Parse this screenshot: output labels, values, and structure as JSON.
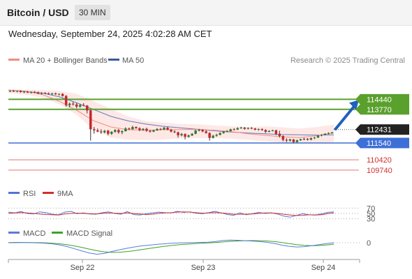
{
  "header": {
    "title": "Bitcoin / USD",
    "timeframe": "30 MIN"
  },
  "datetime": "Wednesday, September 24, 2025 4:02:28 AM CET",
  "legend": {
    "ma20": "MA 20 + Bollinger Bands",
    "ma50": "MA 50",
    "credit": "Research © 2025 Trading Central",
    "rsi": "RSI",
    "rsi_ma": "9MA",
    "macd": "MACD",
    "macd_signal": "MACD Signal"
  },
  "colors": {
    "up": "#2e7d32",
    "down": "#c62828",
    "ma20": "#f28b82",
    "ma50": "#5b7bbf",
    "bollinger": "#fde0de",
    "resistance": "#5aa02c",
    "pivot": "#3d6fd6",
    "support": "#e57373",
    "arrow": "#1f5fbf",
    "rsi": "#4f73d9",
    "rsi_ma": "#d32f2f",
    "macd": "#5b7bd6",
    "macd_signal": "#3aa329"
  },
  "chart_data": {
    "type": "candlestick",
    "x_ticks": [
      "Sep 22",
      "Sep 23",
      "Sep 24"
    ],
    "price_range": [
      108900,
      116400
    ],
    "price": {
      "ohlc_30min": [
        [
          114970,
          115025,
          114920,
          114990
        ],
        [
          114990,
          115055,
          114930,
          114960
        ],
        [
          114960,
          115010,
          114900,
          115000
        ],
        [
          115000,
          115040,
          114880,
          114920
        ],
        [
          114920,
          114985,
          114850,
          114950
        ],
        [
          114950,
          114990,
          114860,
          114880
        ],
        [
          114880,
          114960,
          114820,
          114930
        ],
        [
          114930,
          114980,
          114860,
          114900
        ],
        [
          114900,
          114950,
          114780,
          114820
        ],
        [
          114820,
          114900,
          114750,
          114860
        ],
        [
          114860,
          114910,
          114790,
          114840
        ],
        [
          114840,
          114890,
          114760,
          114800
        ],
        [
          114800,
          114860,
          114720,
          114830
        ],
        [
          114830,
          114880,
          114740,
          114770
        ],
        [
          114770,
          114820,
          114690,
          114800
        ],
        [
          114800,
          114840,
          114620,
          114660
        ],
        [
          114660,
          114720,
          113950,
          114050
        ],
        [
          114050,
          114220,
          113900,
          114150
        ],
        [
          114150,
          114260,
          114020,
          114100
        ],
        [
          114100,
          114200,
          113850,
          113950
        ],
        [
          113950,
          114120,
          113880,
          114050
        ],
        [
          114050,
          114180,
          113980,
          114020
        ],
        [
          114020,
          114060,
          113500,
          113700
        ],
        [
          113700,
          113760,
          111700,
          112450
        ],
        [
          112450,
          112600,
          112150,
          112380
        ],
        [
          112380,
          112500,
          112250,
          112300
        ],
        [
          112300,
          112450,
          112150,
          112250
        ],
        [
          112250,
          112400,
          112180,
          112350
        ],
        [
          112350,
          112420,
          112050,
          112150
        ],
        [
          112150,
          112320,
          112080,
          112280
        ],
        [
          112280,
          112450,
          112220,
          112400
        ],
        [
          112400,
          112470,
          112150,
          112250
        ],
        [
          112250,
          112380,
          112120,
          112320
        ],
        [
          112320,
          112580,
          112300,
          112500
        ],
        [
          112500,
          112560,
          112400,
          112450
        ],
        [
          112450,
          112680,
          112420,
          112600
        ],
        [
          112600,
          112640,
          112480,
          112520
        ],
        [
          112520,
          112580,
          112320,
          112400
        ],
        [
          112400,
          112520,
          112350,
          112480
        ],
        [
          112480,
          112560,
          112280,
          112350
        ],
        [
          112350,
          112400,
          112230,
          112290
        ],
        [
          112290,
          112420,
          112260,
          112380
        ],
        [
          112380,
          112520,
          112340,
          112470
        ],
        [
          112470,
          112530,
          112380,
          112430
        ],
        [
          112430,
          112600,
          112400,
          112550
        ],
        [
          112550,
          112610,
          112380,
          112420
        ],
        [
          112420,
          112480,
          112240,
          112300
        ],
        [
          112300,
          112380,
          112190,
          112250
        ],
        [
          112250,
          112290,
          111900,
          112050
        ],
        [
          112050,
          112200,
          111980,
          112130
        ],
        [
          112130,
          112180,
          111780,
          111950
        ],
        [
          111950,
          112100,
          111900,
          112040
        ],
        [
          112040,
          112200,
          112000,
          112150
        ],
        [
          112150,
          112420,
          112120,
          112360
        ],
        [
          112360,
          112480,
          112300,
          112420
        ],
        [
          112420,
          112450,
          112250,
          112310
        ],
        [
          112310,
          112390,
          112160,
          112200
        ],
        [
          112200,
          112260,
          111700,
          111880
        ],
        [
          111880,
          112080,
          111840,
          112020
        ],
        [
          112020,
          112150,
          111960,
          112080
        ],
        [
          112080,
          112250,
          112050,
          112200
        ],
        [
          112200,
          112330,
          112150,
          112300
        ],
        [
          112300,
          112390,
          112250,
          112330
        ],
        [
          112330,
          112480,
          112300,
          112450
        ],
        [
          112450,
          112520,
          112380,
          112430
        ],
        [
          112430,
          112580,
          112400,
          112520
        ],
        [
          112520,
          112620,
          112480,
          112560
        ],
        [
          112560,
          112600,
          112420,
          112480
        ],
        [
          112480,
          112580,
          112440,
          112530
        ],
        [
          112530,
          112600,
          112460,
          112500
        ],
        [
          112500,
          112540,
          112380,
          112420
        ],
        [
          112420,
          112500,
          112360,
          112460
        ],
        [
          112460,
          112510,
          112350,
          112400
        ],
        [
          112400,
          112450,
          112200,
          112280
        ],
        [
          112280,
          112380,
          112250,
          112340
        ],
        [
          112340,
          112420,
          112310,
          112380
        ],
        [
          112380,
          112420,
          112060,
          112150
        ],
        [
          112150,
          112350,
          111900,
          112000
        ],
        [
          112000,
          112050,
          111650,
          111750
        ],
        [
          111750,
          111850,
          111600,
          111700
        ],
        [
          111700,
          111820,
          111630,
          111780
        ],
        [
          111780,
          111800,
          111520,
          111600
        ],
        [
          111600,
          111760,
          111560,
          111720
        ],
        [
          111720,
          111820,
          111680,
          111790
        ],
        [
          111790,
          111880,
          111720,
          111820
        ],
        [
          111820,
          111860,
          111700,
          111760
        ],
        [
          111760,
          111900,
          111720,
          111860
        ],
        [
          111860,
          111940,
          111800,
          111900
        ],
        [
          111900,
          112060,
          111870,
          112030
        ],
        [
          112030,
          112120,
          111980,
          112080
        ],
        [
          112080,
          112180,
          112050,
          112150
        ],
        [
          112150,
          112240,
          112110,
          112200
        ],
        [
          112200,
          112280,
          112160,
          112230
        ]
      ],
      "ma20": [
        115050,
        114980,
        114750,
        114300,
        113700,
        113000,
        112600,
        112420,
        112380,
        112420,
        112430,
        112440,
        112380,
        112300,
        112150,
        112050,
        111950,
        111900,
        112020,
        112220
      ],
      "ma50": [
        115050,
        114950,
        114850,
        114600,
        114200,
        113750,
        113300,
        113000,
        112800,
        112650,
        112550,
        112450,
        112350,
        112270,
        112200,
        112150,
        112100,
        112080,
        112060,
        112080
      ],
      "bb_upper": [
        115100,
        115080,
        115050,
        115000,
        114800,
        114300,
        113800,
        113300,
        113000,
        112900,
        112800,
        112780,
        112700,
        112650,
        112600,
        112650,
        112580,
        112500,
        112600,
        112750
      ],
      "bb_lower": [
        114850,
        114750,
        114550,
        114100,
        113400,
        112400,
        111900,
        111750,
        111730,
        111760,
        111830,
        111860,
        111870,
        111820,
        111750,
        111650,
        111560,
        111520,
        111520,
        111600
      ],
      "current_price": 112431,
      "resistance_levels": [
        114440,
        113770
      ],
      "pivot": 111540,
      "support_levels": [
        110420,
        109740
      ]
    },
    "rsi": {
      "levels": [
        70,
        50,
        30
      ],
      "range": [
        0,
        100
      ],
      "rsi": [
        55,
        52,
        57,
        50,
        48,
        56,
        53,
        47,
        45,
        55,
        58,
        49,
        52,
        48,
        47,
        53,
        56,
        50,
        47,
        57,
        46,
        44,
        49,
        52,
        55,
        53,
        52,
        58,
        54,
        56,
        51,
        49,
        53,
        58,
        52,
        46,
        43,
        52,
        45,
        49,
        54,
        50,
        52,
        48,
        40,
        36,
        42,
        49,
        45,
        44,
        48,
        54,
        56
      ],
      "ma9": [
        50,
        52,
        53,
        52,
        50,
        48,
        46,
        45,
        44,
        48,
        50,
        51,
        50,
        49,
        48,
        50,
        52,
        51,
        50,
        52,
        50,
        48,
        46,
        47,
        50,
        52,
        53,
        55,
        56,
        55,
        53,
        51,
        52,
        53,
        52,
        50,
        47,
        47,
        47,
        48,
        50,
        52,
        52,
        50,
        47,
        44,
        42,
        43,
        45,
        44,
        45,
        49,
        52
      ]
    },
    "macd": {
      "zero_level": "0",
      "range": [
        -900,
        300
      ],
      "macd": [
        10,
        20,
        15,
        5,
        -10,
        -30,
        -60,
        -120,
        -210,
        -330,
        -450,
        -560,
        -620,
        -570,
        -470,
        -380,
        -300,
        -230,
        -170,
        -130,
        -90,
        -60,
        -30,
        -10,
        0,
        10,
        20,
        30,
        60,
        120,
        140,
        130,
        110,
        90,
        60,
        20,
        -40,
        -130,
        -200,
        -230,
        -210,
        -160,
        -100,
        -50,
        0
      ],
      "signal": [
        0,
        5,
        10,
        8,
        5,
        -5,
        -25,
        -60,
        -110,
        -180,
        -260,
        -350,
        -430,
        -490,
        -520,
        -510,
        -480,
        -430,
        -370,
        -310,
        -250,
        -200,
        -150,
        -110,
        -80,
        -55,
        -30,
        -10,
        10,
        40,
        70,
        95,
        110,
        115,
        110,
        95,
        60,
        10,
        -50,
        -100,
        -140,
        -160,
        -150,
        -120,
        -80
      ]
    }
  }
}
